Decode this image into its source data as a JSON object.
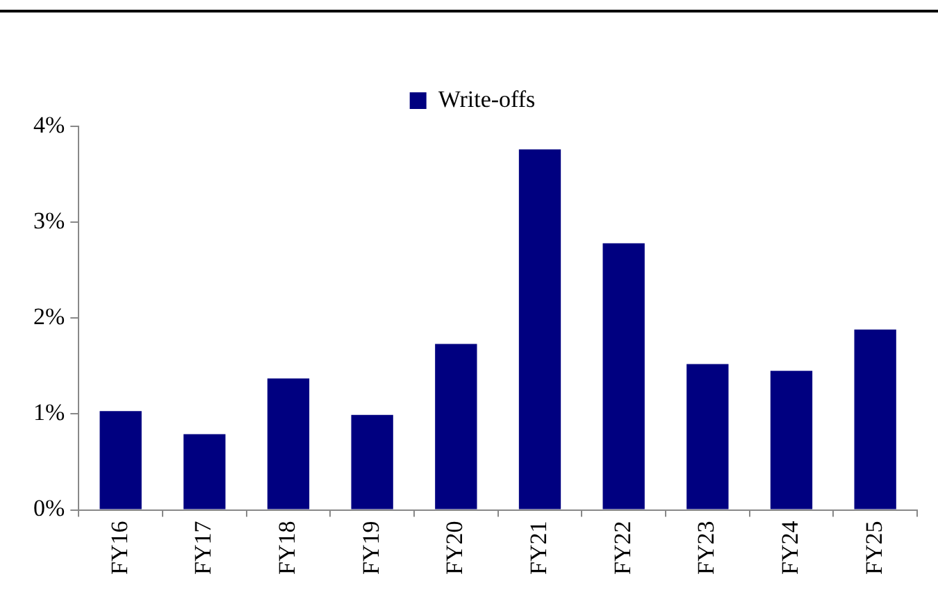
{
  "chart_data": {
    "type": "bar",
    "categories": [
      "FY16",
      "FY17",
      "FY18",
      "FY19",
      "FY20",
      "FY21",
      "FY22",
      "FY23",
      "FY24",
      "FY25"
    ],
    "series": [
      {
        "name": "Write-offs",
        "color": "#000080",
        "values": [
          1.03,
          0.79,
          1.37,
          0.99,
          1.73,
          3.76,
          2.78,
          1.52,
          1.45,
          1.88
        ]
      }
    ],
    "ylim": [
      0,
      4
    ],
    "yticks": [
      {
        "value": 0,
        "label": "0%"
      },
      {
        "value": 1,
        "label": "1%"
      },
      {
        "value": 2,
        "label": "2%"
      },
      {
        "value": 3,
        "label": "3%"
      },
      {
        "value": 4,
        "label": "4%"
      }
    ],
    "grid": false,
    "legend": "top"
  }
}
